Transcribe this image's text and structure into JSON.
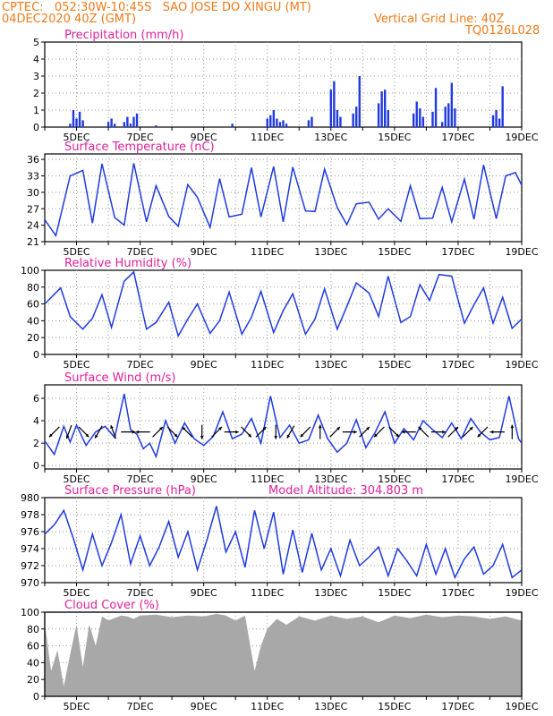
{
  "header": {
    "line1": "CPTEC:   052:30W-10:45S   SAO JOSE DO XINGU (MT)",
    "line2": "04DEC2020 40Z (GMT)",
    "grid_note": "Vertical Grid Line: 40Z",
    "code": "TQ0126L028"
  },
  "colors": {
    "header": "#f07a18",
    "title": "#e0209a",
    "series": "#1f3ae0",
    "cloud": "#a8a8a8",
    "wind_arrow": "#000000"
  },
  "chart_data": [
    {
      "type": "bar",
      "title": "Precipitation (mm/h)",
      "x_range_days": [
        4.0,
        19.0
      ],
      "x_tick_labels": [
        "5DEC",
        "7DEC",
        "9DEC",
        "11DEC",
        "13DEC",
        "15DEC",
        "17DEC",
        "19DEC"
      ],
      "ylim": [
        0,
        5
      ],
      "y_ticks": [
        0,
        1,
        2,
        3,
        4,
        5
      ],
      "grid": true,
      "series": [
        {
          "x": [
            4.8,
            4.9,
            5.0,
            5.1,
            5.2,
            6.0,
            6.1,
            6.2,
            6.5,
            6.6,
            6.7,
            6.8,
            6.9,
            7.5,
            9.9,
            11.0,
            11.1,
            11.2,
            11.3,
            11.4,
            11.5,
            11.6,
            12.3,
            12.4,
            13.0,
            13.1,
            13.2,
            13.3,
            13.7,
            13.8,
            13.9,
            14.5,
            14.6,
            14.7,
            14.8,
            15.6,
            15.7,
            15.8,
            15.9,
            16.2,
            16.3,
            16.5,
            16.6,
            16.7,
            16.8,
            16.9,
            18.1,
            18.2,
            18.3,
            18.4
          ],
          "values": [
            0.2,
            1.0,
            0.5,
            0.9,
            0.4,
            0.3,
            0.5,
            0.2,
            0.3,
            0.6,
            0.2,
            0.6,
            0.8,
            0.1,
            0.2,
            0.5,
            0.7,
            1.0,
            0.5,
            0.3,
            0.4,
            0.2,
            0.4,
            0.6,
            2.2,
            2.7,
            1.0,
            0.6,
            0.8,
            1.2,
            3.0,
            1.4,
            2.1,
            2.2,
            1.0,
            0.8,
            1.5,
            1.1,
            0.6,
            0.9,
            2.3,
            0.3,
            1.2,
            1.4,
            2.6,
            1.1,
            0.7,
            1.0,
            0.5,
            2.4
          ]
        }
      ]
    },
    {
      "type": "line",
      "title": "Surface Temperature (nC)",
      "x_range_days": [
        4.0,
        19.0
      ],
      "x_tick_labels": [
        "5DEC",
        "7DEC",
        "9DEC",
        "11DEC",
        "13DEC",
        "15DEC",
        "17DEC",
        "19DEC"
      ],
      "ylim": [
        21,
        37
      ],
      "y_ticks": [
        21,
        24,
        27,
        30,
        33,
        36
      ],
      "grid": true,
      "series": [
        {
          "x": [
            4.0,
            4.35,
            4.8,
            5.2,
            5.5,
            5.8,
            6.2,
            6.5,
            6.8,
            7.2,
            7.5,
            7.9,
            8.2,
            8.5,
            8.8,
            9.2,
            9.5,
            9.8,
            10.2,
            10.5,
            10.8,
            11.2,
            11.5,
            11.8,
            12.2,
            12.5,
            12.8,
            13.2,
            13.5,
            13.8,
            14.2,
            14.5,
            14.8,
            15.2,
            15.5,
            15.8,
            16.2,
            16.5,
            16.8,
            17.2,
            17.5,
            17.8,
            18.2,
            18.5,
            18.8,
            19.0
          ],
          "values": [
            25.0,
            22.1,
            33.0,
            34.0,
            24.4,
            35.2,
            25.4,
            24.0,
            35.3,
            24.6,
            31.2,
            25.6,
            23.8,
            31.4,
            29.1,
            23.6,
            32.5,
            25.5,
            26.0,
            34.5,
            25.5,
            34.7,
            24.6,
            34.6,
            26.6,
            26.5,
            34.2,
            27.2,
            24.1,
            27.9,
            28.2,
            25.1,
            27.0,
            24.7,
            31.2,
            25.2,
            25.3,
            30.9,
            24.6,
            32.4,
            25.1,
            35.0,
            25.2,
            33.0,
            33.6,
            31.3
          ]
        }
      ]
    },
    {
      "type": "line",
      "title": "Relative Humidity (%)",
      "x_range_days": [
        4.0,
        19.0
      ],
      "x_tick_labels": [
        "5DEC",
        "7DEC",
        "9DEC",
        "11DEC",
        "13DEC",
        "15DEC",
        "17DEC",
        "19DEC"
      ],
      "ylim": [
        0,
        100
      ],
      "y_ticks": [
        0,
        20,
        40,
        60,
        80,
        100
      ],
      "grid": true,
      "series": [
        {
          "x": [
            4.0,
            4.5,
            4.8,
            5.2,
            5.5,
            5.8,
            6.1,
            6.5,
            6.8,
            7.2,
            7.5,
            7.9,
            8.2,
            8.5,
            8.8,
            9.2,
            9.5,
            9.8,
            10.2,
            10.5,
            10.8,
            11.2,
            11.5,
            11.8,
            12.2,
            12.5,
            12.8,
            13.2,
            13.5,
            13.8,
            14.2,
            14.5,
            14.8,
            15.2,
            15.5,
            15.8,
            16.1,
            16.4,
            16.8,
            17.2,
            17.5,
            17.8,
            18.1,
            18.4,
            18.7,
            19.0
          ],
          "values": [
            60,
            79,
            45,
            30,
            43,
            71,
            32,
            87,
            98,
            30,
            38,
            62,
            22,
            42,
            60,
            25,
            40,
            74,
            24,
            44,
            75,
            26,
            52,
            72,
            24,
            42,
            78,
            30,
            57,
            85,
            73,
            45,
            93,
            38,
            45,
            83,
            64,
            95,
            93,
            37,
            59,
            79,
            37,
            68,
            31,
            42
          ]
        }
      ]
    },
    {
      "type": "line",
      "title": "Surface Wind (m/s)",
      "x_range_days": [
        4.0,
        19.0
      ],
      "x_tick_labels": [
        "5DEC",
        "7DEC",
        "9DEC",
        "11DEC",
        "13DEC",
        "15DEC",
        "17DEC",
        "19DEC"
      ],
      "ylim": [
        -0.3,
        7.2
      ],
      "y_ticks": [
        0,
        2,
        4,
        6
      ],
      "grid": true,
      "series": [
        {
          "x": [
            4.0,
            4.3,
            4.6,
            4.8,
            5.0,
            5.3,
            5.6,
            5.9,
            6.2,
            6.5,
            6.7,
            6.9,
            7.1,
            7.3,
            7.5,
            7.8,
            8.1,
            8.4,
            8.7,
            9.0,
            9.3,
            9.6,
            9.9,
            10.2,
            10.5,
            10.8,
            11.1,
            11.4,
            11.7,
            12.0,
            12.3,
            12.6,
            12.9,
            13.2,
            13.5,
            13.8,
            14.1,
            14.4,
            14.7,
            15.0,
            15.3,
            15.6,
            15.9,
            16.2,
            16.5,
            16.8,
            17.1,
            17.4,
            17.7,
            18.0,
            18.3,
            18.6,
            18.9,
            19.0
          ],
          "values": [
            2.2,
            1.0,
            3.5,
            2.1,
            3.6,
            1.8,
            3.0,
            3.5,
            2.5,
            6.4,
            3.2,
            2.8,
            1.5,
            2.0,
            0.8,
            4.0,
            2.0,
            3.8,
            2.4,
            1.8,
            2.6,
            4.8,
            2.4,
            2.8,
            4.2,
            2.0,
            6.2,
            2.5,
            3.6,
            2.0,
            2.3,
            4.5,
            2.4,
            1.2,
            2.0,
            4.1,
            1.6,
            3.0,
            4.8,
            2.0,
            3.3,
            2.3,
            4.0,
            3.2,
            2.5,
            3.8,
            2.4,
            4.2,
            3.0,
            2.3,
            2.5,
            6.2,
            2.4,
            2.0
          ]
        }
      ],
      "wind_arrow_directions_deg": [
        225,
        200,
        135,
        210,
        340,
        90,
        270,
        45,
        135,
        315,
        180,
        45,
        90,
        135,
        45,
        180,
        210,
        225,
        0,
        45,
        90,
        45,
        225,
        135,
        270,
        315,
        90,
        45,
        45,
        225,
        270,
        0
      ]
    },
    {
      "type": "line",
      "title": "Surface Pressure (hPa)",
      "annotation": "Model Altitude: 304.803 m",
      "x_range_days": [
        4.0,
        19.0
      ],
      "x_tick_labels": [
        "5DEC",
        "7DEC",
        "9DEC",
        "11DEC",
        "13DEC",
        "15DEC",
        "17DEC",
        "19DEC"
      ],
      "ylim": [
        970,
        980
      ],
      "y_ticks": [
        970,
        972,
        974,
        976,
        978,
        980
      ],
      "grid": true,
      "series": [
        {
          "x": [
            4.0,
            4.3,
            4.6,
            4.9,
            5.2,
            5.5,
            5.8,
            6.1,
            6.4,
            6.7,
            7.0,
            7.3,
            7.6,
            7.9,
            8.2,
            8.5,
            8.8,
            9.1,
            9.4,
            9.7,
            10.0,
            10.3,
            10.6,
            10.9,
            11.2,
            11.5,
            11.8,
            12.1,
            12.4,
            12.7,
            13.0,
            13.3,
            13.6,
            13.9,
            14.2,
            14.5,
            14.8,
            15.1,
            15.4,
            15.7,
            16.0,
            16.3,
            16.6,
            16.9,
            17.2,
            17.5,
            17.8,
            18.1,
            18.4,
            18.7,
            19.0
          ],
          "values": [
            975.7,
            976.8,
            978.5,
            975.2,
            971.5,
            975.7,
            972.0,
            974.7,
            978.0,
            972.2,
            975.5,
            972.0,
            974.2,
            977.2,
            973.0,
            976.0,
            971.5,
            975.0,
            979.0,
            973.6,
            976.0,
            971.8,
            978.5,
            974.0,
            978.3,
            971.0,
            976.2,
            971.2,
            975.8,
            971.5,
            974.0,
            970.8,
            975.0,
            972.0,
            973.0,
            974.2,
            970.8,
            974.0,
            972.5,
            970.8,
            974.5,
            971.0,
            974.0,
            970.6,
            972.8,
            974.2,
            971.0,
            972.0,
            974.5,
            970.6,
            971.5
          ]
        }
      ]
    },
    {
      "type": "area",
      "title": "Cloud Cover (%)",
      "x_range_days": [
        4.0,
        19.0
      ],
      "x_tick_labels": [
        "5DEC",
        "7DEC",
        "9DEC",
        "11DEC",
        "13DEC",
        "15DEC",
        "17DEC",
        "19DEC"
      ],
      "ylim": [
        0,
        100
      ],
      "y_ticks": [
        0,
        20,
        40,
        60,
        80,
        100
      ],
      "grid": true,
      "series": [
        {
          "x": [
            4.0,
            4.2,
            4.4,
            4.6,
            4.8,
            5.0,
            5.2,
            5.4,
            5.6,
            5.8,
            6.0,
            6.2,
            6.4,
            6.6,
            6.8,
            7.0,
            7.5,
            8.0,
            8.5,
            9.0,
            9.4,
            9.7,
            10.0,
            10.3,
            10.6,
            10.8,
            11.0,
            11.3,
            11.6,
            12.0,
            12.5,
            13.0,
            13.5,
            14.0,
            14.5,
            15.0,
            15.5,
            16.0,
            16.5,
            17.0,
            17.5,
            18.0,
            18.5,
            19.0
          ],
          "values": [
            88,
            30,
            55,
            12,
            50,
            85,
            35,
            86,
            60,
            95,
            90,
            93,
            96,
            95,
            92,
            96,
            97,
            94,
            96,
            95,
            98,
            96,
            90,
            96,
            30,
            60,
            80,
            92,
            85,
            95,
            90,
            96,
            92,
            95,
            88,
            96,
            93,
            97,
            94,
            96,
            95,
            92,
            95,
            90
          ]
        }
      ]
    }
  ]
}
